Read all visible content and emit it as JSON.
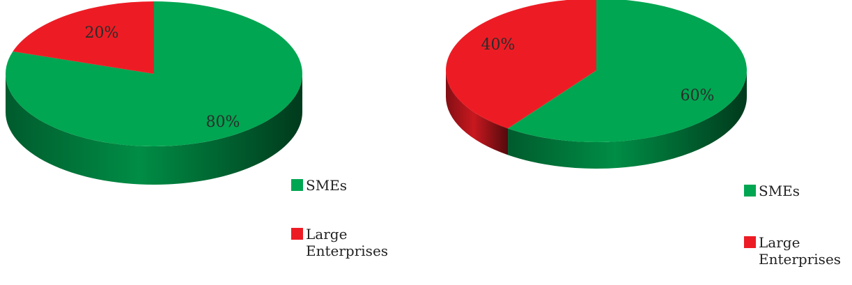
{
  "chart_data": [
    {
      "type": "pie",
      "categories": [
        "SMEs",
        "Large Enterprises"
      ],
      "values": [
        80,
        20
      ],
      "labels": [
        "80%",
        "20%"
      ],
      "colors": [
        "#00a651",
        "#ed1c24"
      ],
      "title": "",
      "legend_position": "bottom-right",
      "three_d": true
    },
    {
      "type": "pie",
      "categories": [
        "SMEs",
        "Large Enterprises"
      ],
      "values": [
        60,
        40
      ],
      "labels": [
        "60%",
        "40%"
      ],
      "colors": [
        "#00a651",
        "#ed1c24"
      ],
      "title": "",
      "legend_position": "bottom-right",
      "three_d": true
    }
  ],
  "legends": [
    {
      "items": [
        {
          "label": "SMEs",
          "color": "#00a651"
        },
        {
          "label": "Large Enterprises",
          "color": "#ed1c24"
        }
      ]
    },
    {
      "items": [
        {
          "label": "SMEs",
          "color": "#00a651"
        },
        {
          "label": "Large Enterprises",
          "color": "#ed1c24"
        }
      ]
    }
  ]
}
